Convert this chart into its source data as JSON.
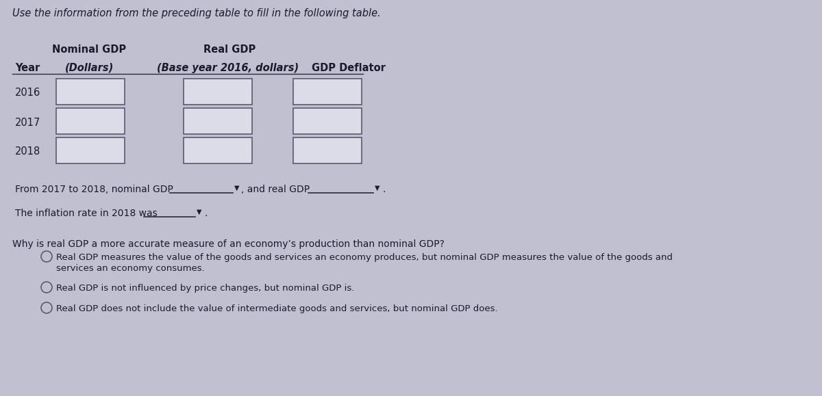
{
  "background_color": "#c0c0d0",
  "title_text": "Use the information from the preceding table to fill in the following table.",
  "title_fontsize": 10.5,
  "title_style": "italic",
  "header1_col1": "Nominal GDP",
  "header1_col2": "Real GDP",
  "header2_col1": "Year",
  "header2_col2": "(Dollars)",
  "header2_col3": "(Base year 2016, dollars)",
  "header2_col4": "GDP Deflator",
  "years": [
    "2016",
    "2017",
    "2018"
  ],
  "box_color": "#dcdce8",
  "box_edge_color": "#5a5a70",
  "text_color": "#1a1a2e",
  "line_color": "#2a2a3a",
  "dropdown_arrow": "▼",
  "sentence1_prefix": "From 2017 to 2018, nominal GDP",
  "sentence1_mid": ", and real GDP",
  "sentence1_suffix": ".",
  "sentence2_prefix": "The inflation rate in 2018 was",
  "sentence2_suffix": ".",
  "question_text": "Why is real GDP a more accurate measure of an economy’s production than nominal GDP?",
  "option1_line1": "Real GDP measures the value of the goods and services an economy produces, but nominal GDP measures the value of the goods and",
  "option1_line2": "services an economy consumes.",
  "option2": "Real GDP is not influenced by price changes, but nominal GDP is.",
  "option3": "Real GDP does not include the value of intermediate goods and services, but nominal GDP does.",
  "body_fontsize": 10,
  "header_fontsize": 10.5
}
